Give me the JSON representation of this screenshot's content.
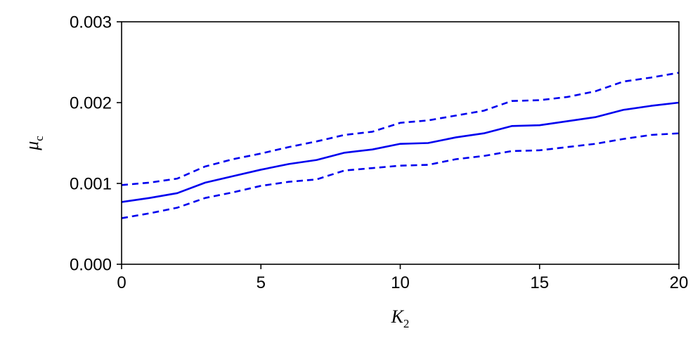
{
  "chart_data": {
    "type": "line",
    "xlabel": "K",
    "xlabel_sub": "2",
    "ylabel": "μ",
    "ylabel_sub": "c",
    "xlim": [
      0,
      20
    ],
    "ylim": [
      0,
      0.003
    ],
    "xticks": [
      0,
      5,
      10,
      15,
      20
    ],
    "xtick_labels": [
      "0",
      "5",
      "10",
      "15",
      "20"
    ],
    "yticks": [
      0,
      0.001,
      0.002,
      0.003
    ],
    "ytick_labels": [
      "0.000",
      "0.001",
      "0.002",
      "0.003"
    ],
    "grid": false,
    "color": "#0000ee",
    "x": [
      0,
      1,
      2,
      3,
      4,
      5,
      6,
      7,
      8,
      9,
      10,
      11,
      12,
      13,
      14,
      15,
      16,
      17,
      18,
      19,
      20
    ],
    "series": [
      {
        "style": "solid",
        "values": [
          0.00077,
          0.00082,
          0.00088,
          0.00101,
          0.00109,
          0.00117,
          0.00124,
          0.00129,
          0.00138,
          0.00142,
          0.00149,
          0.0015,
          0.00157,
          0.00162,
          0.00171,
          0.00172,
          0.00177,
          0.00182,
          0.00191,
          0.00196,
          0.002
        ]
      },
      {
        "style": "dashed",
        "values": [
          0.00098,
          0.00101,
          0.00106,
          0.00121,
          0.0013,
          0.00137,
          0.00145,
          0.00152,
          0.0016,
          0.00164,
          0.00175,
          0.00178,
          0.00184,
          0.0019,
          0.00202,
          0.00203,
          0.00207,
          0.00214,
          0.00226,
          0.00231,
          0.00237
        ]
      },
      {
        "style": "dashed",
        "values": [
          0.00057,
          0.00063,
          0.0007,
          0.00082,
          0.00089,
          0.00097,
          0.00102,
          0.00105,
          0.00116,
          0.00119,
          0.00122,
          0.00123,
          0.0013,
          0.00134,
          0.0014,
          0.00141,
          0.00145,
          0.00149,
          0.00155,
          0.0016,
          0.00162
        ]
      }
    ]
  }
}
